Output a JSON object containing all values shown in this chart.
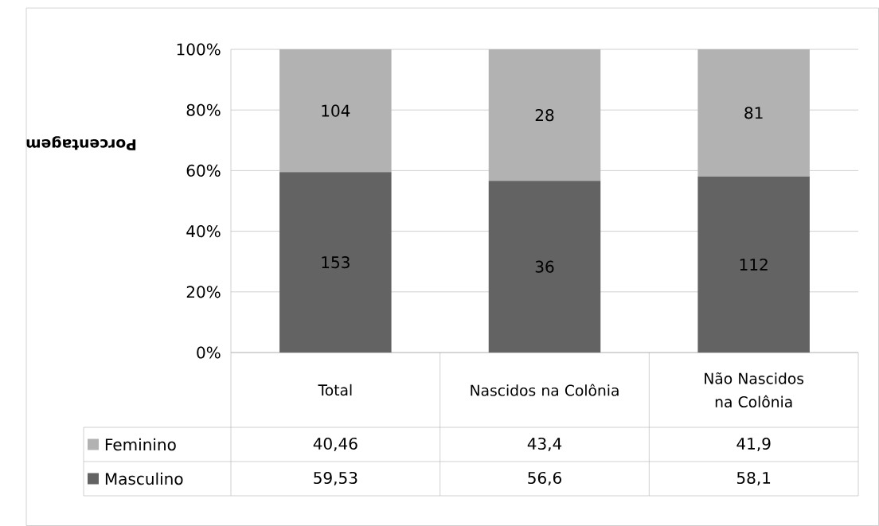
{
  "chart_data": {
    "type": "bar",
    "stacked": true,
    "ylabel": "Porcentagem",
    "categories": [
      "Total",
      "Nascidos na Colônia",
      "Não Nascidos na Colônia"
    ],
    "series": [
      {
        "name": "Masculino",
        "color": "#636363",
        "values": [
          59.53,
          56.6,
          58.1
        ],
        "value_labels": [
          "59,53",
          "56,6",
          "58,1"
        ]
      },
      {
        "name": "Feminino",
        "color": "#b2b2b2",
        "values": [
          40.46,
          43.4,
          41.9
        ],
        "value_labels": [
          "40,46",
          "43,4",
          "41,9"
        ]
      }
    ],
    "annotations": [
      "153",
      "36",
      "112",
      "104",
      "28",
      "81"
    ],
    "ylim": [
      0,
      100
    ],
    "yticks": [
      {
        "value": 0,
        "label": "0%"
      },
      {
        "value": 20,
        "label": "20%"
      },
      {
        "value": 40,
        "label": "40%"
      },
      {
        "value": 60,
        "label": "60%"
      },
      {
        "value": 80,
        "label": "80%"
      },
      {
        "value": 100,
        "label": "100%"
      }
    ],
    "grid": "y",
    "legend": "bottom"
  }
}
